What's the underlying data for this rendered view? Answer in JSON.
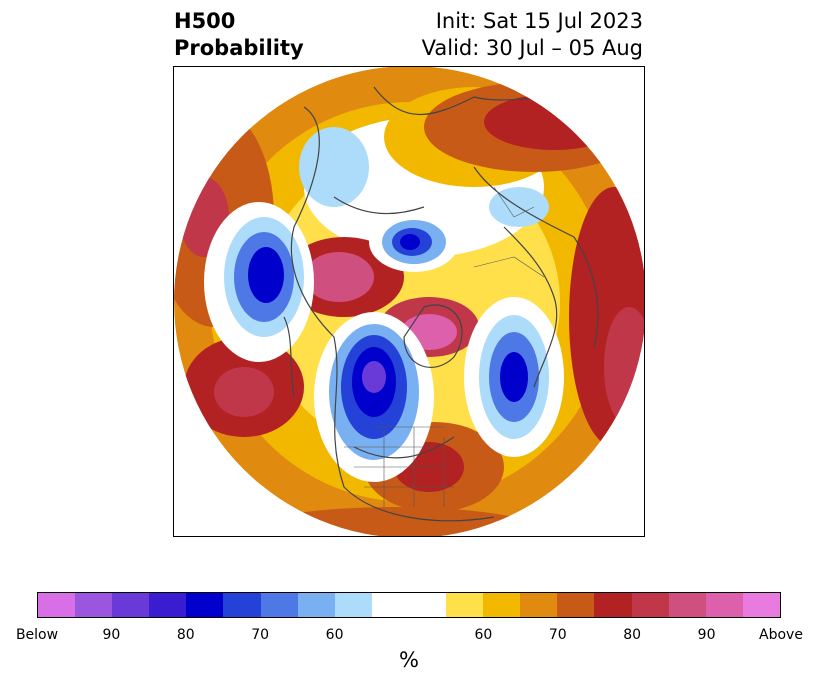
{
  "title": {
    "left_line1": "H500",
    "left_line2": "Probability",
    "right_line1": "Init: Sat 15 Jul 2023",
    "right_line2": "Valid: 30 Jul – 05 Aug"
  },
  "colorbar": {
    "colors": [
      "#d86fe6",
      "#9b56e0",
      "#6a3ad8",
      "#3a1dd0",
      "#0000cc",
      "#2441d8",
      "#4e78e6",
      "#79b0f2",
      "#acdcfa",
      "#ffffff",
      "#ffffff",
      "#ffe04a",
      "#f2b800",
      "#e08a10",
      "#c85a18",
      "#b22222",
      "#c0374a",
      "#cf4f7e",
      "#dd60ad",
      "#e87ae0"
    ],
    "labels": [
      "Below",
      "90",
      "80",
      "70",
      "60",
      "60",
      "70",
      "80",
      "90",
      "Above"
    ],
    "unit": "%"
  },
  "map": {
    "type": "polar-stereographic H500 probability",
    "legend_placement": "bottom"
  }
}
